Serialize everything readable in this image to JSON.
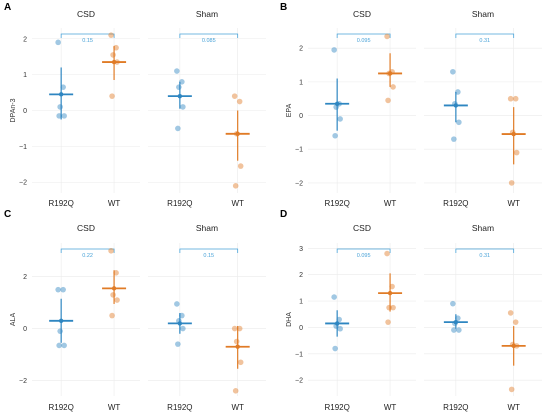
{
  "figure": {
    "colors": {
      "R192Q": "#2e86c1",
      "WT": "#e07b26",
      "bracket": "#4aa3d8",
      "grid": "#ebebeb"
    },
    "facet_titles": [
      "CSD",
      "Sham"
    ]
  },
  "chart_data": [
    {
      "panel": "A",
      "type": "scatter",
      "ylabel": "DPAn-3",
      "ylim": [
        -2.3,
        2.3
      ],
      "yticks": [
        -2,
        -1,
        0,
        1,
        2
      ],
      "categories": [
        "R192Q",
        "WT"
      ],
      "facets": [
        {
          "title": "CSD",
          "pvalue": "0.15",
          "groups": [
            {
              "name": "R192Q",
              "points": [
                1.9,
                0.65,
                0.1,
                -0.15,
                -0.15
              ],
              "mean": 0.45,
              "lower": -0.25,
              "upper": 1.2
            },
            {
              "name": "WT",
              "points": [
                2.1,
                1.75,
                1.55,
                1.35,
                0.4
              ],
              "mean": 1.35,
              "lower": 0.85,
              "upper": 1.8
            }
          ]
        },
        {
          "title": "Sham",
          "pvalue": "0.085",
          "groups": [
            {
              "name": "R192Q",
              "points": [
                1.1,
                0.8,
                0.65,
                0.1,
                -0.5
              ],
              "mean": 0.4,
              "lower": 0.05,
              "upper": 0.8
            },
            {
              "name": "WT",
              "points": [
                0.4,
                0.25,
                -0.65,
                -1.55,
                -2.1
              ],
              "mean": -0.65,
              "lower": -1.4,
              "upper": 0.0
            }
          ]
        }
      ]
    },
    {
      "panel": "B",
      "type": "scatter",
      "ylabel": "EPA",
      "ylim": [
        -2.3,
        2.6
      ],
      "yticks": [
        -2,
        -1,
        0,
        1,
        2
      ],
      "categories": [
        "R192Q",
        "WT"
      ],
      "facets": [
        {
          "title": "CSD",
          "pvalue": "0.095",
          "groups": [
            {
              "name": "R192Q",
              "points": [
                1.95,
                0.35,
                0.25,
                -0.1,
                -0.6
              ],
              "mean": 0.35,
              "lower": -0.45,
              "upper": 1.1
            },
            {
              "name": "WT",
              "points": [
                2.35,
                1.3,
                1.25,
                0.85,
                0.45
              ],
              "mean": 1.25,
              "lower": 0.85,
              "upper": 1.85
            }
          ]
        },
        {
          "title": "Sham",
          "pvalue": "0.31",
          "groups": [
            {
              "name": "R192Q",
              "points": [
                1.3,
                0.7,
                0.35,
                -0.2,
                -0.7
              ],
              "mean": 0.3,
              "lower": -0.2,
              "upper": 0.7
            },
            {
              "name": "WT",
              "points": [
                0.5,
                0.5,
                -0.5,
                -1.1,
                -2.0
              ],
              "mean": -0.55,
              "lower": -1.45,
              "upper": 0.25
            }
          ]
        }
      ]
    },
    {
      "panel": "C",
      "type": "scatter",
      "ylabel": "ALA",
      "ylim": [
        -2.6,
        3.3
      ],
      "yticks": [
        -2,
        0,
        2
      ],
      "categories": [
        "R192Q",
        "WT"
      ],
      "facets": [
        {
          "title": "CSD",
          "pvalue": "0.22",
          "groups": [
            {
              "name": "R192Q",
              "points": [
                1.5,
                1.5,
                -0.1,
                -0.65,
                -0.65
              ],
              "mean": 0.3,
              "lower": -0.55,
              "upper": 1.15
            },
            {
              "name": "WT",
              "points": [
                3.0,
                2.15,
                1.3,
                1.1,
                0.5
              ],
              "mean": 1.55,
              "lower": 0.95,
              "upper": 2.25
            }
          ]
        },
        {
          "title": "Sham",
          "pvalue": "0.15",
          "groups": [
            {
              "name": "R192Q",
              "points": [
                0.95,
                0.5,
                0.3,
                0.0,
                -0.6
              ],
              "mean": 0.2,
              "lower": -0.2,
              "upper": 0.6
            },
            {
              "name": "WT",
              "points": [
                0.0,
                0.0,
                -0.5,
                -1.3,
                -2.4
              ],
              "mean": -0.7,
              "lower": -1.55,
              "upper": 0.1
            }
          ]
        }
      ]
    },
    {
      "panel": "D",
      "type": "scatter",
      "ylabel": "DHA",
      "ylim": [
        -2.6,
        3.2
      ],
      "yticks": [
        -2,
        -1,
        0,
        1,
        2,
        3
      ],
      "categories": [
        "R192Q",
        "WT"
      ],
      "facets": [
        {
          "title": "CSD",
          "pvalue": "0.095",
          "groups": [
            {
              "name": "R192Q",
              "points": [
                1.15,
                0.3,
                0.05,
                -0.05,
                -0.8
              ],
              "mean": 0.15,
              "lower": -0.35,
              "upper": 0.65
            },
            {
              "name": "WT",
              "points": [
                2.8,
                1.55,
                0.75,
                0.75,
                0.2
              ],
              "mean": 1.3,
              "lower": 0.6,
              "upper": 2.05
            }
          ]
        },
        {
          "title": "Sham",
          "pvalue": "0.31",
          "groups": [
            {
              "name": "R192Q",
              "points": [
                0.9,
                0.35,
                0.15,
                -0.1,
                -0.1
              ],
              "mean": 0.2,
              "lower": -0.05,
              "upper": 0.5
            },
            {
              "name": "WT",
              "points": [
                0.55,
                0.2,
                -0.65,
                -0.7,
                -2.35
              ],
              "mean": -0.7,
              "lower": -1.45,
              "upper": 0.05
            }
          ]
        }
      ]
    }
  ]
}
